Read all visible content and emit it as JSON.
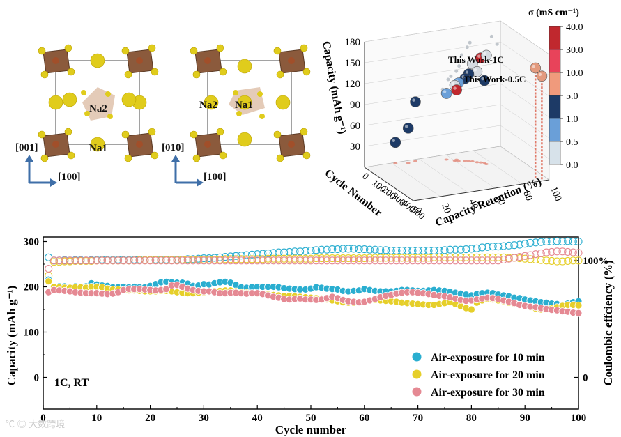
{
  "crystal_left": {
    "labels": [
      "Na2",
      "Na1"
    ],
    "axis_vertical": "[001]",
    "axis_horizontal": "[100]"
  },
  "crystal_right": {
    "labels": [
      "Na2",
      "Na1"
    ],
    "axis_vertical": "[010]",
    "axis_horizontal": "[100]"
  },
  "colors": {
    "octahedron": "#8b5a3c",
    "sodium": "#e0cc1c",
    "axis_arrow": "#3f6fa8"
  },
  "chart_data": [
    {
      "type": "scatter3d",
      "zlabel": "Capacity (mAh g⁻¹)",
      "xlabel": "Cycle Number",
      "ylabel": "Capacity Retention (%)",
      "z_ticks": [
        "30",
        "60",
        "90",
        "120",
        "150",
        "180"
      ],
      "x_ticks": [
        "0",
        "100",
        "200",
        "300",
        "400",
        "500"
      ],
      "y_ticks": [
        "0",
        "20",
        "40",
        "60",
        "80",
        "100"
      ],
      "zlim": [
        0,
        180
      ],
      "annotations": [
        "This Work-1C",
        "This Work-0.5C"
      ],
      "colorbar": {
        "title": "σ (mS cm⁻¹)",
        "ticks": [
          "40.0",
          "30.0",
          "10.0",
          "5.0",
          "1.0",
          "0.5",
          "0.0"
        ],
        "colors": [
          "#c0282e",
          "#e8435a",
          "#f09a7c",
          "#1d3a66",
          "#6a9fd8",
          "#d7e2ea"
        ]
      },
      "points": [
        {
          "cycle": 470,
          "retention": 92,
          "capacity": 160,
          "color": "#e39a7e",
          "label": "This Work-1C"
        },
        {
          "cycle": 480,
          "retention": 96,
          "capacity": 148,
          "color": "#e39a7e",
          "label": "This Work-0.5C"
        },
        {
          "cycle": 130,
          "retention": 70,
          "capacity": 140,
          "color": "#d6dbe1"
        },
        {
          "cycle": 160,
          "retention": 74,
          "capacity": 150,
          "color": "#c0282e"
        },
        {
          "cycle": 150,
          "retention": 72,
          "capacity": 130,
          "color": "#d6dbe1"
        },
        {
          "cycle": 120,
          "retention": 68,
          "capacity": 125,
          "color": "#1d3a66"
        },
        {
          "cycle": 110,
          "retention": 66,
          "capacity": 118,
          "color": "#1d3a66"
        },
        {
          "cycle": 100,
          "retention": 62,
          "capacity": 112,
          "color": "#6a9fd8"
        },
        {
          "cycle": 90,
          "retention": 60,
          "capacity": 108,
          "color": "#d6dbe1"
        },
        {
          "cycle": 80,
          "retention": 62,
          "capacity": 100,
          "color": "#c0282e"
        },
        {
          "cycle": 60,
          "retention": 56,
          "capacity": 95,
          "color": "#6a9fd8"
        },
        {
          "cycle": 20,
          "retention": 36,
          "capacity": 85,
          "color": "#1d3a66"
        },
        {
          "cycle": 30,
          "retention": 30,
          "capacity": 50,
          "color": "#1d3a66"
        },
        {
          "cycle": 10,
          "retention": 22,
          "capacity": 30,
          "color": "#1d3a66"
        },
        {
          "cycle": 190,
          "retention": 76,
          "capacity": 156,
          "color": "#d6dbe1"
        },
        {
          "cycle": 170,
          "retention": 76,
          "capacity": 118,
          "color": "#1d3a66"
        }
      ]
    },
    {
      "type": "scatter",
      "title": "",
      "xlabel": "Cycle number",
      "ylabel": "Capacity (mAh g⁻¹)",
      "y2label": "Coulombic effciency (%)",
      "xlim": [
        0,
        100
      ],
      "ylim": [
        -70,
        310
      ],
      "xticks": [
        "0",
        "10",
        "20",
        "30",
        "40",
        "50",
        "60",
        "70",
        "80",
        "90",
        "100"
      ],
      "yticks": [
        "0",
        "100",
        "200",
        "300"
      ],
      "y2ticks": [
        "0",
        "100%"
      ],
      "annotation": "1C, RT",
      "series": [
        {
          "name": "Air-exposure for 10 min",
          "color": "#2aaed0",
          "capacity": [
            216,
            200,
            201,
            201,
            200,
            201,
            200,
            201,
            208,
            205,
            203,
            202,
            199,
            199,
            200,
            199,
            200,
            199,
            199,
            202,
            206,
            210,
            211,
            210,
            209,
            209,
            207,
            202,
            203,
            206,
            205,
            208,
            210,
            211,
            209,
            204,
            199,
            198,
            200,
            200,
            200,
            200,
            200,
            199,
            197,
            196,
            195,
            194,
            194,
            196,
            199,
            198,
            196,
            195,
            194,
            191,
            190,
            191,
            192,
            195,
            193,
            191,
            190,
            190,
            190,
            191,
            193,
            193,
            192,
            191,
            191,
            192,
            193,
            192,
            191,
            189,
            187,
            185,
            183,
            181,
            184,
            186,
            187,
            186,
            183,
            181,
            179,
            176,
            175,
            172,
            170,
            168,
            166,
            165,
            163,
            162,
            160,
            163,
            166,
            168
          ],
          "ce": [
            265,
            258,
            258,
            259,
            258,
            259,
            259,
            258,
            259,
            259,
            260,
            259,
            259,
            260,
            259,
            259,
            260,
            260,
            259,
            259,
            260,
            260,
            260,
            259,
            260,
            260,
            261,
            261,
            262,
            263,
            263,
            264,
            265,
            266,
            267,
            268,
            269,
            270,
            271,
            272,
            273,
            274,
            275,
            276,
            276,
            277,
            278,
            278,
            279,
            280,
            281,
            282,
            282,
            283,
            283,
            284,
            284,
            284,
            283,
            283,
            282,
            282,
            281,
            281,
            280,
            280,
            280,
            280,
            280,
            280,
            280,
            280,
            280,
            280,
            281,
            282,
            282,
            282,
            283,
            284,
            285,
            287,
            288,
            289,
            289,
            290,
            291,
            292,
            293,
            295,
            297,
            298,
            299,
            300,
            300,
            301,
            300,
            301,
            300,
            300
          ]
        },
        {
          "name": "Air-exposure for 20 min",
          "color": "#e6cf2a",
          "capacity": [
            212,
            200,
            199,
            198,
            198,
            199,
            199,
            198,
            200,
            200,
            199,
            196,
            194,
            194,
            193,
            192,
            192,
            191,
            190,
            190,
            190,
            191,
            191,
            190,
            188,
            187,
            186,
            186,
            187,
            188,
            189,
            190,
            191,
            192,
            192,
            190,
            188,
            187,
            186,
            185,
            184,
            183,
            182,
            181,
            180,
            180,
            179,
            178,
            177,
            176,
            175,
            174,
            172,
            170,
            168,
            166,
            165,
            165,
            166,
            168,
            170,
            171,
            170,
            169,
            168,
            167,
            165,
            164,
            163,
            162,
            161,
            160,
            160,
            162,
            164,
            166,
            162,
            157,
            153,
            150,
            165,
            170,
            173,
            172,
            170,
            168,
            165,
            162,
            160,
            157,
            155,
            152,
            150,
            150,
            152,
            155,
            158,
            160,
            160,
            159
          ],
          "ce": [
            225,
            255,
            255,
            256,
            256,
            257,
            257,
            257,
            257,
            258,
            258,
            258,
            258,
            258,
            258,
            258,
            258,
            259,
            259,
            259,
            259,
            259,
            259,
            259,
            259,
            260,
            260,
            260,
            260,
            260,
            260,
            260,
            260,
            261,
            261,
            261,
            261,
            261,
            261,
            261,
            261,
            262,
            262,
            262,
            262,
            262,
            262,
            262,
            262,
            262,
            263,
            263,
            263,
            263,
            263,
            263,
            263,
            263,
            263,
            263,
            264,
            264,
            264,
            264,
            264,
            264,
            264,
            264,
            264,
            264,
            264,
            264,
            265,
            265,
            265,
            265,
            265,
            265,
            265,
            265,
            265,
            265,
            265,
            265,
            265,
            265,
            264,
            264,
            263,
            262,
            261,
            260,
            259,
            258,
            257,
            256,
            256,
            257,
            258,
            258
          ]
        },
        {
          "name": "Air-exposure for 30 min",
          "color": "#e58993",
          "capacity": [
            188,
            193,
            192,
            191,
            190,
            188,
            187,
            186,
            186,
            186,
            185,
            184,
            185,
            188,
            193,
            195,
            195,
            195,
            194,
            193,
            192,
            193,
            195,
            203,
            204,
            200,
            196,
            193,
            191,
            190,
            190,
            188,
            186,
            186,
            187,
            187,
            186,
            185,
            186,
            186,
            184,
            181,
            178,
            176,
            173,
            172,
            173,
            174,
            172,
            172,
            171,
            172,
            175,
            178,
            175,
            171,
            168,
            167,
            166,
            167,
            170,
            173,
            177,
            180,
            182,
            185,
            187,
            188,
            188,
            187,
            186,
            184,
            182,
            180,
            179,
            177,
            174,
            171,
            169,
            170,
            172,
            174,
            176,
            175,
            173,
            170,
            167,
            164,
            160,
            158,
            156,
            155,
            153,
            151,
            149,
            148,
            146,
            145,
            143,
            142
          ],
          "ce": [
            240,
            258,
            258,
            258,
            258,
            258,
            258,
            258,
            258,
            258,
            258,
            258,
            258,
            258,
            258,
            258,
            258,
            258,
            258,
            258,
            258,
            258,
            258,
            258,
            258,
            258,
            258,
            258,
            258,
            258,
            258,
            258,
            258,
            258,
            258,
            258,
            258,
            258,
            258,
            258,
            258,
            258,
            258,
            258,
            258,
            258,
            258,
            258,
            258,
            258,
            258,
            258,
            258,
            258,
            258,
            258,
            258,
            258,
            258,
            258,
            258,
            258,
            258,
            258,
            258,
            258,
            258,
            258,
            258,
            258,
            258,
            258,
            258,
            258,
            258,
            258,
            258,
            258,
            258,
            258,
            258,
            258,
            258,
            258,
            258,
            260,
            262,
            264,
            266,
            268,
            270,
            272,
            274,
            276,
            277,
            278,
            278,
            277,
            276,
            275
          ]
        }
      ]
    }
  ],
  "watermark": "大数跨境"
}
